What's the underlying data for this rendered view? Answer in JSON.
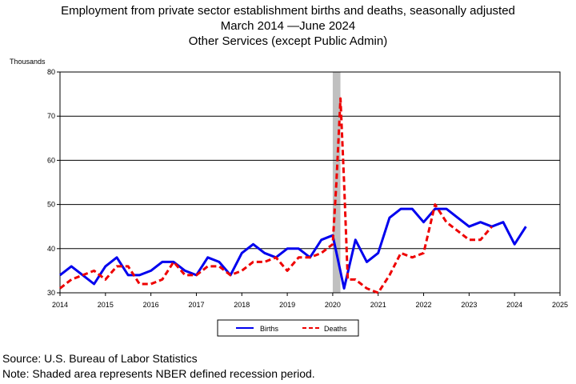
{
  "chart_data": {
    "type": "line",
    "title": "Employment from private sector establishment births and deaths, seasonally adjusted",
    "subtitle": "March 2014 —June 2024",
    "subtitle2": "Other Services (except Public Admin)",
    "ylabel": "Thousands",
    "ylim": [
      30,
      80
    ],
    "yticks": [
      30,
      40,
      50,
      60,
      70,
      80
    ],
    "xlim": [
      2014,
      2025
    ],
    "xticks": [
      "2014",
      "2015",
      "2016",
      "2017",
      "2018",
      "2019",
      "2020",
      "2021",
      "2022",
      "2023",
      "2024",
      "2025"
    ],
    "grid": true,
    "legend_position": "bottom",
    "recession": {
      "start": 2020.0,
      "end": 2020.17
    },
    "series": [
      {
        "name": "Births",
        "color": "#0000ee",
        "dash": "solid",
        "x": [
          2014.0,
          2014.25,
          2014.5,
          2014.75,
          2015.0,
          2015.25,
          2015.5,
          2015.75,
          2016.0,
          2016.25,
          2016.5,
          2016.75,
          2017.0,
          2017.25,
          2017.5,
          2017.75,
          2018.0,
          2018.25,
          2018.5,
          2018.75,
          2019.0,
          2019.25,
          2019.5,
          2019.75,
          2020.0,
          2020.25,
          2020.5,
          2020.75,
          2021.0,
          2021.25,
          2021.5,
          2021.75,
          2022.0,
          2022.25,
          2022.5,
          2022.75,
          2023.0,
          2023.25,
          2023.5,
          2023.75,
          2024.0,
          2024.25
        ],
        "values": [
          34,
          36,
          34,
          32,
          36,
          38,
          34,
          34,
          35,
          37,
          37,
          35,
          34,
          38,
          37,
          34,
          39,
          41,
          39,
          38,
          40,
          40,
          38,
          42,
          43,
          31,
          42,
          37,
          39,
          47,
          49,
          49,
          46,
          49,
          49,
          47,
          45,
          46,
          45,
          46,
          41,
          45
        ]
      },
      {
        "name": "Deaths",
        "color": "#ee0000",
        "dash": "dashed",
        "x": [
          2014.0,
          2014.25,
          2014.5,
          2014.75,
          2015.0,
          2015.25,
          2015.5,
          2015.75,
          2016.0,
          2016.25,
          2016.5,
          2016.75,
          2017.0,
          2017.25,
          2017.5,
          2017.75,
          2018.0,
          2018.25,
          2018.5,
          2018.75,
          2019.0,
          2019.25,
          2019.5,
          2019.75,
          2020.0,
          2020.08,
          2020.17,
          2020.25,
          2020.33,
          2020.5,
          2020.75,
          2021.0,
          2021.25,
          2021.5,
          2021.75,
          2022.0,
          2022.25,
          2022.5,
          2022.75,
          2023.0,
          2023.25,
          2023.5
        ],
        "values": [
          31,
          33,
          34,
          35,
          33,
          36,
          36,
          32,
          32,
          33,
          37,
          34,
          34,
          36,
          36,
          34,
          35,
          37,
          37,
          38,
          35,
          38,
          38,
          39,
          41,
          55,
          74,
          55,
          33,
          33,
          31,
          30,
          34,
          39,
          38,
          39,
          50,
          46,
          44,
          42,
          42,
          45
        ]
      }
    ]
  },
  "source": "Source: U.S. Bureau of Labor Statistics",
  "note": "Note: Shaded area represents NBER defined recession period."
}
